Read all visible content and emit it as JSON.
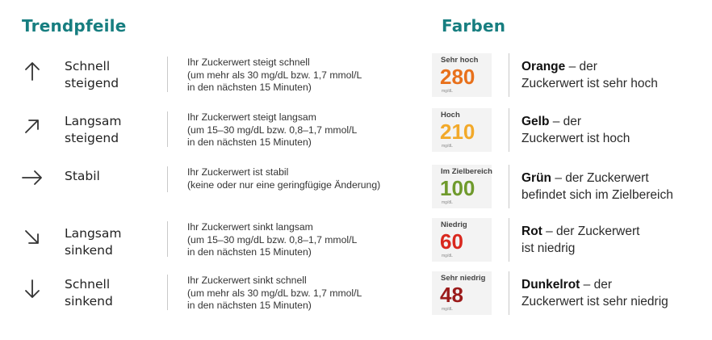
{
  "headings": {
    "trends": "Trendpfeile",
    "colors": "Farben"
  },
  "trends": [
    {
      "icon": "arrow-up-icon",
      "label1": "Schnell",
      "label2": "steigend",
      "desc": [
        "Ihr Zuckerwert steigt schnell",
        "(um mehr als 30 mg/dL bzw. 1,7 mmol/L",
        "in den nächsten 15 Minuten)"
      ]
    },
    {
      "icon": "arrow-up-right-icon",
      "label1": "Langsam",
      "label2": "steigend",
      "desc": [
        "Ihr Zuckerwert steigt langsam",
        "(um 15–30 mg/dL bzw. 0,8–1,7 mmol/L",
        "in den nächsten 15 Minuten)"
      ]
    },
    {
      "icon": "arrow-right-icon",
      "label1": "Stabil",
      "label2": "",
      "desc": [
        "Ihr Zuckerwert ist stabil",
        "(keine oder nur eine geringfügige Änderung)",
        ""
      ]
    },
    {
      "icon": "arrow-down-right-icon",
      "label1": "Langsam",
      "label2": "sinkend",
      "desc": [
        "Ihr Zuckerwert sinkt langsam",
        "(um 15–30 mg/dL bzw. 0,8–1,7 mmol/L",
        "in den nächsten 15 Minuten)"
      ]
    },
    {
      "icon": "arrow-down-icon",
      "label1": "Schnell",
      "label2": "sinkend",
      "desc": [
        "Ihr Zuckerwert sinkt schnell",
        "(um mehr als 30 mg/dL bzw. 1,7 mmol/L",
        "in den nächsten 15 Minuten)"
      ]
    }
  ],
  "colors": [
    {
      "card_label": "Sehr hoch",
      "value": "280",
      "unit": "mg/dL",
      "value_color": "#e8711c",
      "bold": "Orange",
      "rest1": " – der",
      "line2": "Zuckerwert ist sehr hoch"
    },
    {
      "card_label": "Hoch",
      "value": "210",
      "unit": "mg/dL",
      "value_color": "#f2a92a",
      "bold": "Gelb",
      "rest1": " – der",
      "line2": "Zuckerwert ist hoch"
    },
    {
      "card_label": "Im Zielbereich",
      "value": "100",
      "unit": "mg/dL",
      "value_color": "#6f9a2c",
      "bold": "Grün",
      "rest1": " – der Zuckerwert",
      "line2": "befindet sich im Zielbereich"
    },
    {
      "card_label": "Niedrig",
      "value": "60",
      "unit": "mg/dL",
      "value_color": "#d9281e",
      "bold": "Rot",
      "rest1": " – der Zuckerwert",
      "line2": "ist niedrig"
    },
    {
      "card_label": "Sehr niedrig",
      "value": "48",
      "unit": "mg/dL",
      "value_color": "#9b1b1b",
      "bold": "Dunkelrot",
      "rest1": " – der",
      "line2": "Zuckerwert ist sehr niedrig"
    }
  ]
}
